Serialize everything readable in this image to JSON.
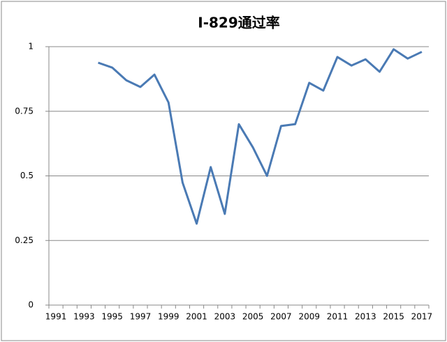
{
  "chart_data": {
    "type": "line",
    "title": "I-829通过率",
    "categories": [
      "1991",
      null,
      "1993",
      null,
      "1995",
      null,
      "1997",
      null,
      "1999",
      null,
      "2001",
      null,
      "2003",
      null,
      "2005",
      null,
      "2007",
      null,
      "2009",
      null,
      "2011",
      null,
      "2013",
      null,
      "2015",
      null,
      "2017"
    ],
    "series": [
      {
        "color": "#4a7ab4",
        "values": [
          null,
          null,
          null,
          0.938,
          0.919,
          0.87,
          0.844,
          0.892,
          0.784,
          0.474,
          0.315,
          0.534,
          0.353,
          0.7,
          0.61,
          0.5,
          0.693,
          0.7,
          0.86,
          0.83,
          0.96,
          0.927,
          0.951,
          0.903,
          0.99,
          0.954,
          0.98
        ]
      }
    ],
    "ylim": [
      0,
      1
    ],
    "yticks": [
      0,
      0.25,
      0.5,
      0.75,
      1
    ],
    "grid": true
  }
}
